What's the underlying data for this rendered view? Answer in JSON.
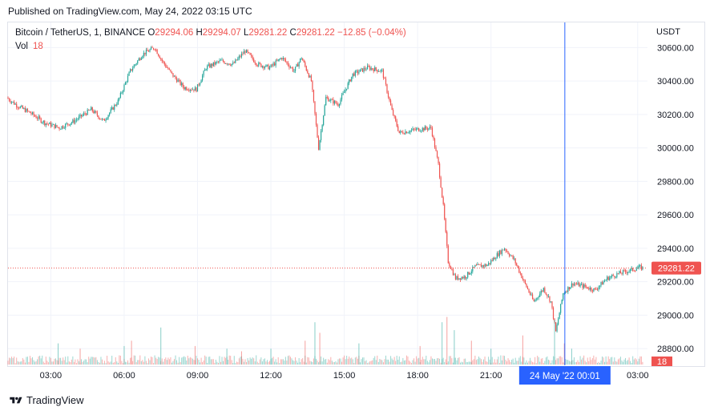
{
  "header": {
    "published": "Published on TradingView.com, May 24, 2022 03:15 UTC"
  },
  "legend": {
    "symbol": "Bitcoin / TetherUS, 1, BINANCE",
    "o_label": "O",
    "o_value": "29294.06",
    "h_label": "H",
    "h_value": "29294.07",
    "l_label": "L",
    "l_value": "29281.22",
    "c_label": "C",
    "c_value": "29281.22",
    "change": "−12.85 (−0.04%)",
    "vol_label": "Vol",
    "vol_value": "18"
  },
  "axis": {
    "currency": "USDT",
    "last_price_label": "29281.22",
    "last_volume_label": "18",
    "crosshair_time_label": "24 May '22   00:01"
  },
  "footer": {
    "brand": "TradingView"
  },
  "colors": {
    "up": "#26a69a",
    "down": "#ef5350",
    "crosshair": "#2962ff",
    "grid": "#f0f3fa",
    "text": "#131722"
  },
  "chart_data": {
    "type": "candlestick",
    "interval": "1 minute",
    "y_axis_ticks": [
      28800,
      29000,
      29200,
      29400,
      29600,
      29800,
      30000,
      30200,
      30400,
      30600
    ],
    "y_axis_labels": [
      "28800.00",
      "29000.00",
      "29200.00",
      "29400.00",
      "29600.00",
      "29800.00",
      "30000.00",
      "30200.00",
      "30400.00",
      "30600.00"
    ],
    "x_axis_labels": [
      "03:00",
      "06:00",
      "09:00",
      "12:00",
      "15:00",
      "18:00",
      "21:00",
      "03:00"
    ],
    "x_axis_label_hours": [
      3,
      6,
      9,
      12,
      15,
      18,
      21,
      27
    ],
    "ylim": [
      28700,
      30750
    ],
    "xlim_hours": [
      1.25,
      27.4
    ],
    "last_price": 29281.22,
    "crosshair_hour": 24.02,
    "price_path": [
      [
        1.25,
        30300
      ],
      [
        1.7,
        30250
      ],
      [
        2.2,
        30210
      ],
      [
        2.8,
        30150
      ],
      [
        3.4,
        30120
      ],
      [
        4.0,
        30160
      ],
      [
        4.7,
        30230
      ],
      [
        5.2,
        30160
      ],
      [
        5.8,
        30280
      ],
      [
        6.3,
        30460
      ],
      [
        6.8,
        30560
      ],
      [
        7.3,
        30600
      ],
      [
        7.6,
        30520
      ],
      [
        8.0,
        30440
      ],
      [
        8.5,
        30360
      ],
      [
        9.0,
        30350
      ],
      [
        9.4,
        30480
      ],
      [
        10.0,
        30520
      ],
      [
        10.5,
        30500
      ],
      [
        11.0,
        30580
      ],
      [
        11.5,
        30500
      ],
      [
        12.0,
        30480
      ],
      [
        12.5,
        30540
      ],
      [
        13.0,
        30460
      ],
      [
        13.3,
        30540
      ],
      [
        13.7,
        30400
      ],
      [
        14.0,
        30000
      ],
      [
        14.3,
        30300
      ],
      [
        14.8,
        30260
      ],
      [
        15.4,
        30440
      ],
      [
        16.0,
        30480
      ],
      [
        16.6,
        30460
      ],
      [
        17.0,
        30220
      ],
      [
        17.3,
        30090
      ],
      [
        18.0,
        30110
      ],
      [
        18.6,
        30120
      ],
      [
        18.9,
        29900
      ],
      [
        19.1,
        29650
      ],
      [
        19.3,
        29320
      ],
      [
        19.6,
        29220
      ],
      [
        20.0,
        29230
      ],
      [
        20.4,
        29290
      ],
      [
        20.9,
        29300
      ],
      [
        21.3,
        29360
      ],
      [
        21.6,
        29400
      ],
      [
        22.0,
        29330
      ],
      [
        22.4,
        29200
      ],
      [
        22.8,
        29080
      ],
      [
        23.2,
        29160
      ],
      [
        23.5,
        29080
      ],
      [
        23.7,
        28900
      ],
      [
        24.0,
        29130
      ],
      [
        24.4,
        29190
      ],
      [
        24.9,
        29170
      ],
      [
        25.3,
        29150
      ],
      [
        25.8,
        29220
      ],
      [
        26.3,
        29250
      ],
      [
        26.8,
        29270
      ],
      [
        27.1,
        29285
      ],
      [
        27.3,
        29281
      ]
    ],
    "volume": {
      "baseline_bars_max": 3,
      "spike_hours": [
        3.3,
        4.2,
        6.0,
        6.3,
        7.5,
        8.9,
        10.2,
        10.8,
        12.0,
        13.4,
        13.8,
        14.0,
        15.6,
        18.1,
        19.0,
        19.2,
        19.5,
        20.2,
        21.0,
        22.3,
        23.6,
        24.0,
        24.3
      ],
      "spike_values": [
        8,
        6,
        7,
        9,
        14,
        7,
        6,
        5,
        6,
        9,
        16,
        12,
        8,
        7,
        16,
        18,
        13,
        9,
        6,
        11,
        17,
        8,
        6
      ]
    }
  }
}
